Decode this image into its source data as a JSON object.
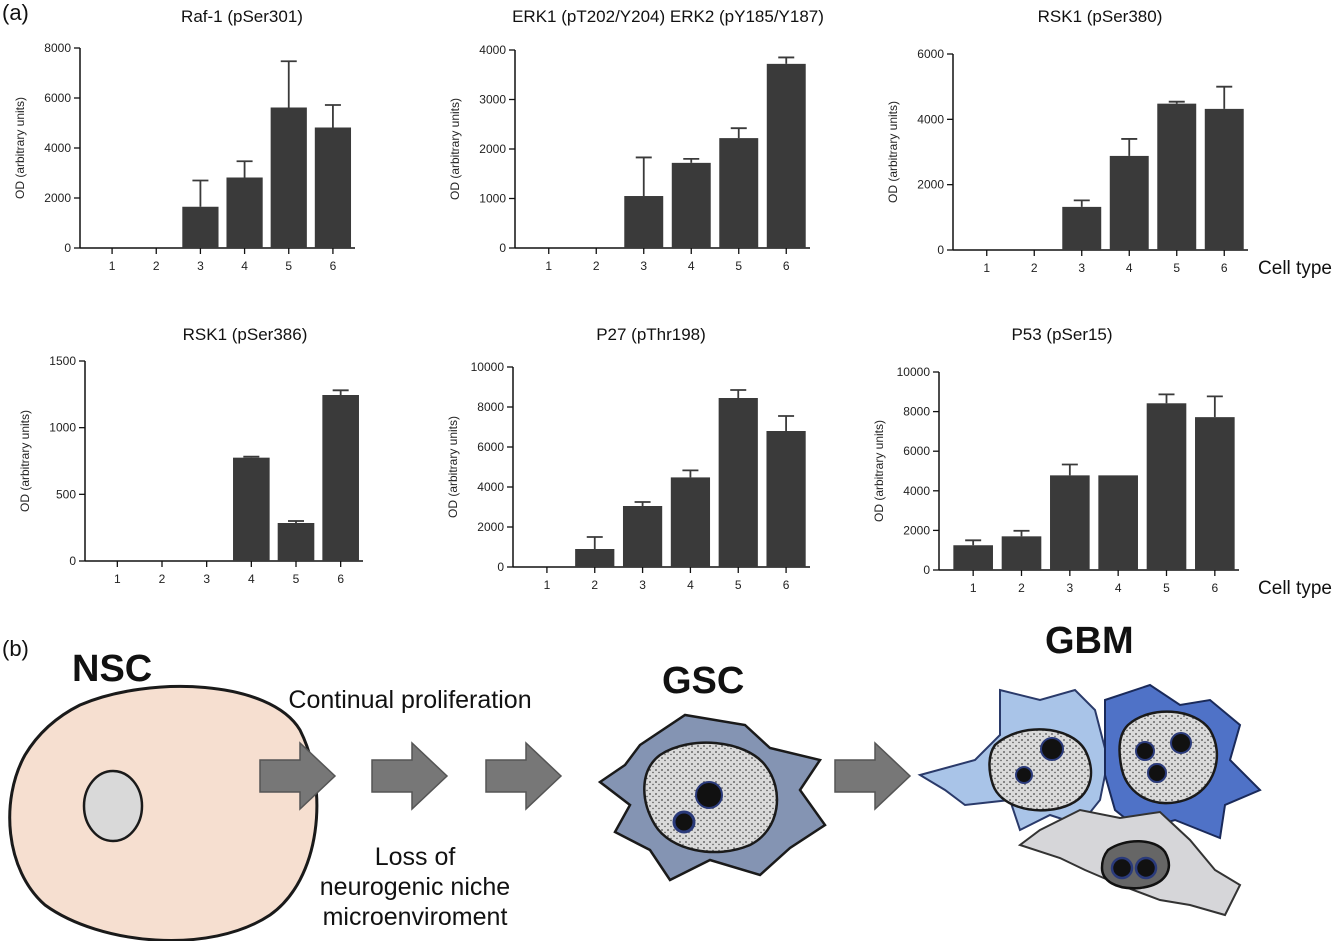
{
  "panel_a_label": "(a)",
  "panel_b_label": "(b)",
  "x_axis_caption": "Cell type",
  "chart_data": [
    {
      "type": "bar",
      "title": "Raf-1 (pSer301)",
      "ylabel": "OD (arbitrary units)",
      "xlabel": "",
      "categories": [
        "1",
        "2",
        "3",
        "4",
        "5",
        "6"
      ],
      "values": [
        0,
        0,
        1650,
        2820,
        5620,
        4820
      ],
      "errors": [
        0,
        0,
        1050,
        650,
        1850,
        900
      ],
      "ylim": [
        0,
        8000
      ],
      "yticks": [
        0,
        2000,
        4000,
        6000,
        8000
      ]
    },
    {
      "type": "bar",
      "title": "ERK1 (pT202/Y204) ERK2 (pY185/Y187)",
      "ylabel": "OD (arbitrary units)",
      "xlabel": "",
      "categories": [
        "1",
        "2",
        "3",
        "4",
        "5",
        "6"
      ],
      "values": [
        0,
        0,
        1050,
        1720,
        2220,
        3720
      ],
      "errors": [
        0,
        0,
        780,
        80,
        200,
        130
      ],
      "ylim": [
        0,
        4000
      ],
      "yticks": [
        0,
        1000,
        2000,
        3000,
        4000
      ]
    },
    {
      "type": "bar",
      "title": "RSK1 (pSer380)",
      "ylabel": "OD (arbitrary units)",
      "xlabel": "Cell type",
      "categories": [
        "1",
        "2",
        "3",
        "4",
        "5",
        "6"
      ],
      "values": [
        0,
        0,
        1320,
        2880,
        4480,
        4320
      ],
      "errors": [
        0,
        0,
        200,
        520,
        60,
        680
      ],
      "ylim": [
        0,
        6000
      ],
      "yticks": [
        0,
        2000,
        4000,
        6000
      ]
    },
    {
      "type": "bar",
      "title": "RSK1 (pSer386)",
      "ylabel": "OD (arbitrary units)",
      "xlabel": "",
      "categories": [
        "1",
        "2",
        "3",
        "4",
        "5",
        "6"
      ],
      "values": [
        0,
        0,
        0,
        775,
        285,
        1245
      ],
      "errors": [
        0,
        0,
        0,
        8,
        15,
        35
      ],
      "ylim": [
        0,
        1500
      ],
      "yticks": [
        0,
        500,
        1000,
        1500
      ]
    },
    {
      "type": "bar",
      "title": "P27 (pThr198)",
      "ylabel": "OD (arbitrary units)",
      "xlabel": "",
      "categories": [
        "1",
        "2",
        "3",
        "4",
        "5",
        "6"
      ],
      "values": [
        0,
        900,
        3050,
        4480,
        8450,
        6800
      ],
      "errors": [
        0,
        600,
        200,
        350,
        400,
        750
      ],
      "ylim": [
        0,
        10000
      ],
      "yticks": [
        0,
        2000,
        4000,
        6000,
        8000,
        10000
      ]
    },
    {
      "type": "bar",
      "title": "P53 (pSer15)",
      "ylabel": "OD (arbitrary units)",
      "xlabel": "Cell type",
      "categories": [
        "1",
        "2",
        "3",
        "4",
        "5",
        "6"
      ],
      "values": [
        1250,
        1700,
        4780,
        4780,
        8420,
        7720
      ],
      "errors": [
        250,
        280,
        550,
        0,
        450,
        1050
      ],
      "ylim": [
        0,
        10000
      ],
      "yticks": [
        0,
        2000,
        4000,
        6000,
        8000,
        10000
      ]
    }
  ],
  "diagram": {
    "nsc_label": "NSC",
    "gsc_label": "GSC",
    "gbm_label": "GBM",
    "top_caption": "Continual proliferation",
    "bottom_caption_lines": [
      "Loss of",
      "neurogenic niche",
      "microenviroment"
    ]
  },
  "colors": {
    "bar": "#3a3a3a",
    "nsc_cell": "#f6dfd0",
    "nucleus": "#d9d9d9",
    "gsc_cell": "#8494b3",
    "gbm_light": "#a9c4e8",
    "gbm_dark": "#4f72c7",
    "gbm_gray": "#d6d6d9",
    "arrow": "#777777"
  }
}
